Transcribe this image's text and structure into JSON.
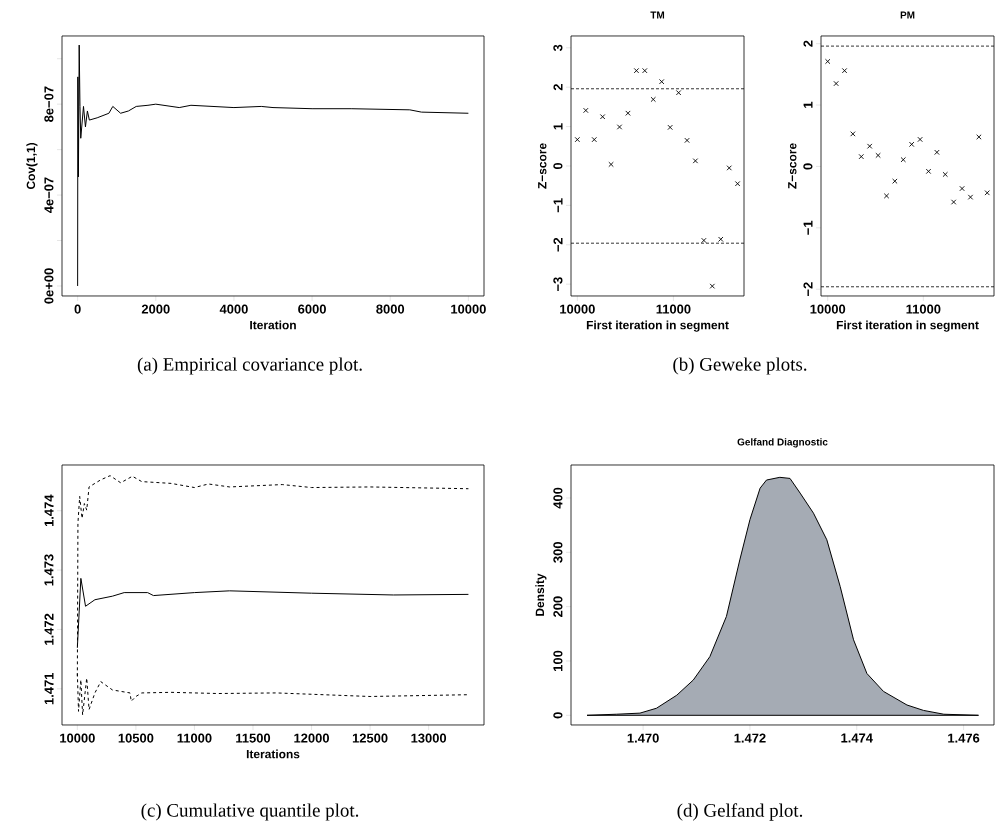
{
  "chart_data": [
    {
      "type": "line",
      "xlabel": "Iteration",
      "ylabel": "Cov(1,1)",
      "color": "#000000",
      "xlim": [
        -400,
        10400
      ],
      "ylim": [
        -4.4e-08,
        1.1e-06
      ],
      "xticks": [
        0,
        2000,
        4000,
        6000,
        8000,
        10000
      ],
      "yticks": [
        {
          "value": 0,
          "label": "0e+00"
        },
        {
          "value": 2e-07,
          "label": null
        },
        {
          "value": 4e-07,
          "label": "4e−07"
        },
        {
          "value": 6e-07,
          "label": null
        },
        {
          "value": 8e-07,
          "label": "8e−07"
        },
        {
          "value": 1e-06,
          "label": null
        }
      ],
      "series": [
        {
          "x": [
            0,
            5,
            20,
            40,
            60,
            80,
            150,
            200,
            250,
            300,
            500,
            800,
            900,
            1100,
            1300,
            1500,
            1800,
            2000,
            2600,
            2900,
            4000,
            4700,
            5000,
            6000,
            7000,
            8500,
            8800,
            10000
          ],
          "values": [
            0,
            9.2e-07,
            4.8e-07,
            1.06e-06,
            7.9e-07,
            6.5e-07,
            7.9e-07,
            7e-07,
            7.7e-07,
            7.3e-07,
            7.4e-07,
            7.6e-07,
            7.9e-07,
            7.6e-07,
            7.7e-07,
            7.9e-07,
            7.95e-07,
            8e-07,
            7.85e-07,
            7.95e-07,
            7.85e-07,
            7.9e-07,
            7.85e-07,
            7.8e-07,
            7.8e-07,
            7.75e-07,
            7.65e-07,
            7.6e-07
          ]
        }
      ],
      "annotations": [
        "(a) Empirical covariance plot."
      ]
    },
    {
      "type": "scatter",
      "title": "TM",
      "xlabel": "First iteration in segment",
      "ylabel": "Z−score",
      "color": "#000000",
      "marker": "cross",
      "xlim": [
        9934,
        11735
      ],
      "ylim": [
        -3.3,
        3.3
      ],
      "xticks": [
        10000,
        11000
      ],
      "yticks": [
        {
          "value": -3,
          "label": "−3"
        },
        {
          "value": -2,
          "label": "−2"
        },
        {
          "value": -1,
          "label": "−1"
        },
        0,
        1,
        2,
        3
      ],
      "ref_lines": [
        {
          "axis": "y",
          "value": 1.96,
          "line_style": "dashed"
        },
        {
          "axis": "y",
          "value": -1.96,
          "line_style": "dashed"
        }
      ],
      "series": [
        {
          "x": [
            10000,
            10088,
            10176,
            10263,
            10351,
            10439,
            10527,
            10615,
            10702,
            10790,
            10878,
            10966,
            11054,
            11142,
            11229,
            11317,
            11405,
            11493,
            11581,
            11668
          ],
          "values": [
            0.67,
            1.41,
            0.67,
            1.25,
            0.04,
            0.99,
            1.34,
            2.42,
            2.42,
            1.69,
            2.14,
            0.98,
            1.86,
            0.65,
            0.13,
            -1.89,
            -3.05,
            -1.86,
            -0.05,
            -0.45
          ]
        }
      ],
      "annotations": [
        "(b) Geweke plots."
      ]
    },
    {
      "type": "scatter",
      "title": "PM",
      "xlabel": "First iteration in segment",
      "ylabel": "Z−score",
      "color": "#000000",
      "marker": "cross",
      "xlim": [
        9930,
        11739
      ],
      "ylim": [
        -2.11,
        2.125
      ],
      "xticks": [
        10000,
        11000
      ],
      "yticks": [
        {
          "value": -2,
          "label": "−2"
        },
        {
          "value": -1,
          "label": "−1"
        },
        0,
        1,
        2
      ],
      "ref_lines": [
        {
          "axis": "y",
          "value": 1.96,
          "line_style": "dashed"
        },
        {
          "axis": "y",
          "value": -1.96,
          "line_style": "dashed"
        }
      ],
      "series": [
        {
          "x": [
            10000,
            10088,
            10176,
            10263,
            10351,
            10439,
            10527,
            10615,
            10702,
            10790,
            10878,
            10966,
            11054,
            11142,
            11229,
            11317,
            11405,
            11493,
            11581,
            11668
          ],
          "values": [
            1.71,
            1.35,
            1.56,
            0.53,
            0.16,
            0.33,
            0.18,
            -0.48,
            -0.24,
            0.11,
            0.36,
            0.44,
            -0.08,
            0.23,
            -0.13,
            -0.58,
            -0.36,
            -0.5,
            0.48,
            -0.43
          ]
        }
      ]
    },
    {
      "type": "line",
      "xlabel": "Iterations",
      "color": "#000000",
      "xlim": [
        9869,
        13473
      ],
      "ylim": [
        1.47039,
        1.47477
      ],
      "xticks": [
        10000,
        10500,
        11000,
        11500,
        12000,
        12500,
        13000
      ],
      "yticks": [
        1.471,
        1.472,
        1.473,
        1.474
      ],
      "series": [
        {
          "line_style": "dashed",
          "x": [
            10000,
            10005,
            10020,
            10040,
            10060,
            10080,
            10100,
            10150,
            10200,
            10280,
            10370,
            10470,
            10550,
            10800,
            11000,
            11120,
            11300,
            11750,
            12000,
            12500,
            13340
          ],
          "values": [
            1.47121,
            1.47379,
            1.47424,
            1.47387,
            1.47412,
            1.47401,
            1.4744,
            1.47446,
            1.47452,
            1.47459,
            1.47447,
            1.47458,
            1.47449,
            1.47446,
            1.47439,
            1.47445,
            1.4744,
            1.47444,
            1.47439,
            1.4744,
            1.47437
          ]
        },
        {
          "line_style": "solid",
          "x": [
            10000,
            10030,
            10070,
            10150,
            10300,
            10400,
            10600,
            10650,
            11000,
            11300,
            12000,
            12700,
            13340
          ],
          "values": [
            1.47169,
            1.47286,
            1.47239,
            1.4725,
            1.47256,
            1.47262,
            1.47262,
            1.47257,
            1.47262,
            1.47265,
            1.47261,
            1.47258,
            1.47259
          ]
        },
        {
          "line_style": "dashed",
          "x": [
            10000,
            10010,
            10030,
            10045,
            10080,
            10100,
            10150,
            10200,
            10300,
            10450,
            10460,
            10500,
            10550,
            10800,
            11200,
            11700,
            12500,
            13340
          ],
          "values": [
            1.47126,
            1.47062,
            1.47115,
            1.47056,
            1.47118,
            1.47065,
            1.47093,
            1.47112,
            1.47098,
            1.47093,
            1.47079,
            1.47087,
            1.47093,
            1.47094,
            1.47092,
            1.47093,
            1.47087,
            1.4709
          ]
        }
      ],
      "annotations": [
        "(c) Cumulative quantile plot."
      ]
    },
    {
      "type": "area",
      "title": "Gelfand Diagnostic",
      "ylabel": "Density",
      "color": "#a5abb4",
      "xlim": [
        1.46865,
        1.47657
      ],
      "ylim": [
        -17.8,
        460.7
      ],
      "xticks": [
        {
          "value": 1.47,
          "label": "1.470"
        },
        1.472,
        1.474,
        1.476
      ],
      "yticks": [
        0,
        100,
        200,
        300,
        400
      ],
      "series": [
        {
          "x": [
            1.46895,
            1.4695,
            1.46994,
            1.47025,
            1.47063,
            1.47094,
            1.47125,
            1.47156,
            1.47181,
            1.472,
            1.47219,
            1.47231,
            1.47256,
            1.47275,
            1.47294,
            1.47319,
            1.47344,
            1.47369,
            1.47394,
            1.47419,
            1.4745,
            1.47494,
            1.47525,
            1.47563,
            1.47628
          ],
          "values": [
            0,
            2,
            4,
            13,
            37,
            65,
            108,
            182,
            286,
            360,
            418,
            433,
            438,
            436,
            409,
            372,
            323,
            237,
            139,
            77,
            44,
            19,
            9,
            2,
            0
          ]
        }
      ],
      "annotations": [
        "(d) Gelfand plot."
      ]
    }
  ]
}
